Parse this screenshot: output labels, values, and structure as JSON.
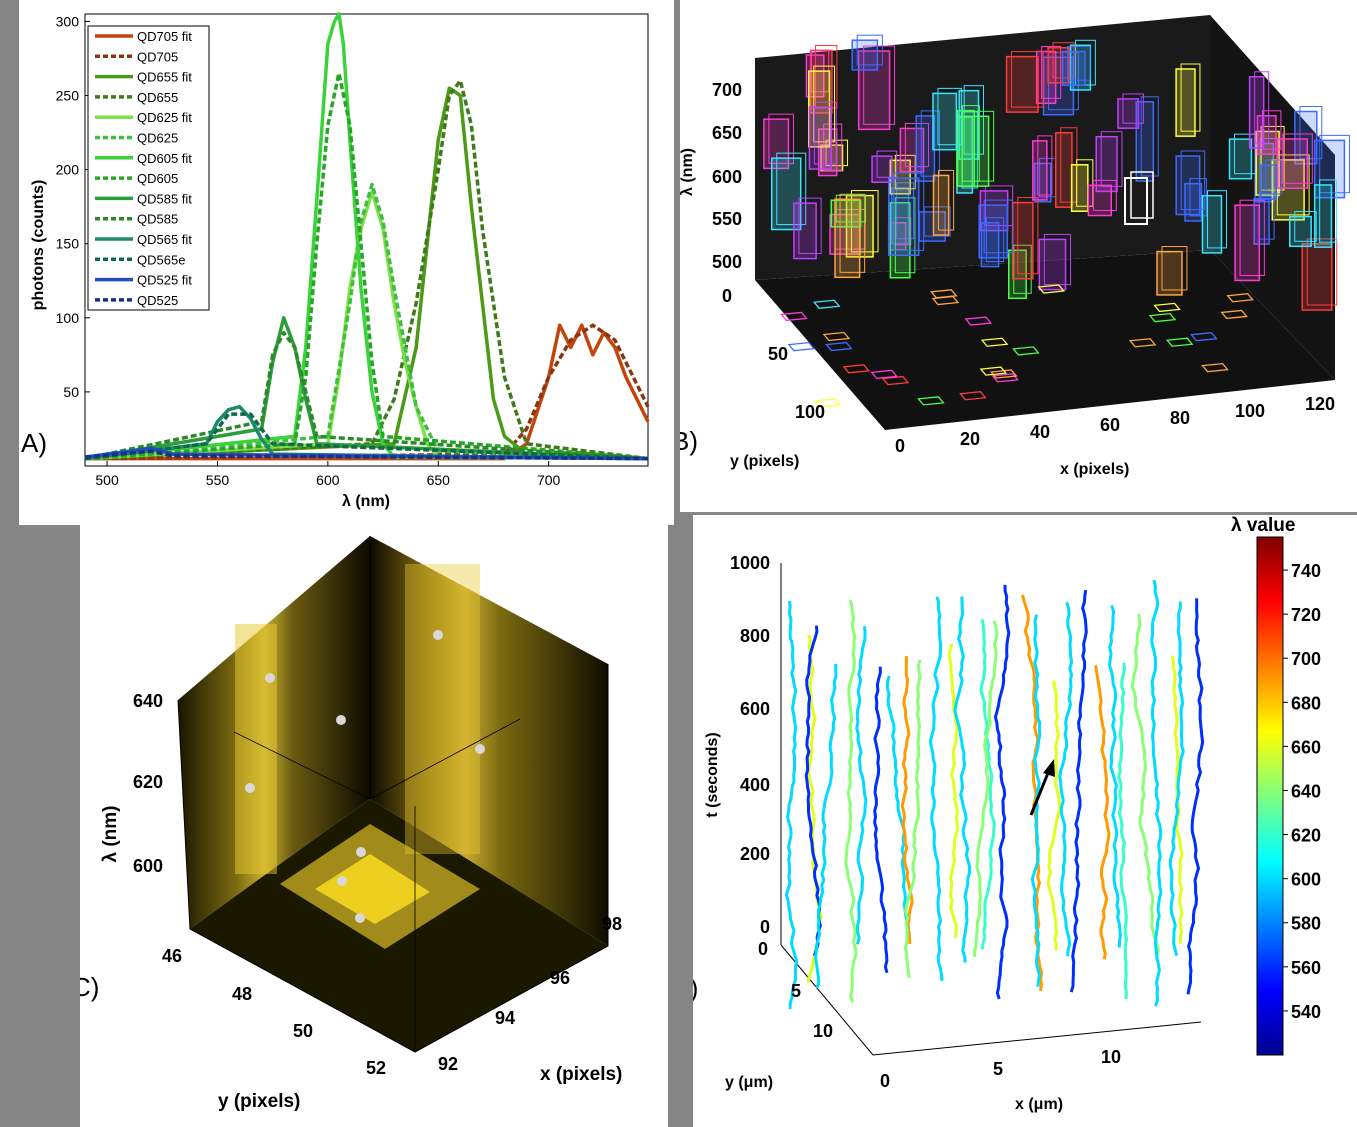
{
  "panels": {
    "a": {
      "label": "A)"
    },
    "b": {
      "label": "B)"
    },
    "c": {
      "label": "C)"
    },
    "d": {
      "label": "D)"
    }
  },
  "chart_data": [
    {
      "type": "line",
      "panel": "A)",
      "xlabel": "λ (nm)",
      "ylabel": "photons (counts)",
      "xlim": [
        490,
        745
      ],
      "ylim": [
        0,
        305
      ],
      "xticks": [
        500,
        550,
        600,
        650,
        700
      ],
      "yticks": [
        50,
        100,
        150,
        200,
        250,
        300
      ],
      "legend_position": "top-left",
      "legend": [
        "QD705 fit",
        "QD705",
        "QD655 fit",
        "QD655",
        "QD625 fit",
        "QD625",
        "QD605 fit",
        "QD605",
        "QD585 fit",
        "QD585",
        "QD565 fit",
        "QD565e",
        "QD525 fit",
        "QD525"
      ],
      "series": [
        {
          "name": "QD705 fit",
          "color": "#c0460e",
          "style": "solid",
          "x": [
            490,
            680,
            690,
            700,
            705,
            710,
            715,
            720,
            725,
            730,
            735,
            740,
            745
          ],
          "y": [
            5,
            5,
            15,
            60,
            95,
            80,
            95,
            75,
            90,
            80,
            60,
            45,
            30
          ]
        },
        {
          "name": "QD705",
          "color": "#8b3510",
          "style": "dashed",
          "x": [
            490,
            680,
            690,
            700,
            710,
            720,
            730,
            740,
            745
          ],
          "y": [
            5,
            8,
            25,
            60,
            85,
            95,
            85,
            55,
            40
          ]
        },
        {
          "name": "QD655 fit",
          "color": "#4c9a16",
          "style": "solid",
          "x": [
            490,
            630,
            640,
            645,
            650,
            655,
            660,
            665,
            670,
            675,
            680,
            690,
            745
          ],
          "y": [
            5,
            15,
            80,
            150,
            220,
            255,
            250,
            175,
            110,
            45,
            20,
            8,
            5
          ]
        },
        {
          "name": "QD655",
          "color": "#3f7a1a",
          "style": "dashed",
          "x": [
            490,
            620,
            630,
            640,
            650,
            655,
            660,
            665,
            670,
            680,
            690,
            745
          ],
          "y": [
            5,
            15,
            45,
            110,
            200,
            250,
            260,
            230,
            160,
            60,
            15,
            5
          ]
        },
        {
          "name": "QD625 fit",
          "color": "#7ee04a",
          "style": "solid",
          "x": [
            490,
            600,
            605,
            610,
            615,
            620,
            625,
            630,
            635,
            640,
            645,
            650,
            745
          ],
          "y": [
            5,
            15,
            60,
            120,
            160,
            185,
            160,
            110,
            70,
            40,
            15,
            6,
            5
          ]
        },
        {
          "name": "QD625",
          "color": "#3fbf3f",
          "style": "dashed",
          "x": [
            490,
            600,
            610,
            615,
            620,
            625,
            630,
            640,
            650,
            745
          ],
          "y": [
            5,
            20,
            110,
            165,
            190,
            165,
            120,
            40,
            10,
            5
          ]
        },
        {
          "name": "QD605 fit",
          "color": "#3cd23c",
          "style": "solid",
          "x": [
            490,
            585,
            590,
            595,
            600,
            603,
            605,
            607,
            610,
            615,
            620,
            625,
            630,
            745
          ],
          "y": [
            5,
            20,
            80,
            180,
            285,
            300,
            305,
            285,
            220,
            120,
            50,
            15,
            6,
            5
          ]
        },
        {
          "name": "QD605",
          "color": "#24a824",
          "style": "dashed",
          "x": [
            490,
            585,
            590,
            595,
            600,
            605,
            610,
            615,
            620,
            625,
            745
          ],
          "y": [
            5,
            15,
            60,
            150,
            230,
            265,
            230,
            150,
            70,
            20,
            5
          ]
        },
        {
          "name": "QD585 fit",
          "color": "#2a9e3a",
          "style": "solid",
          "x": [
            490,
            570,
            575,
            580,
            585,
            590,
            595,
            745
          ],
          "y": [
            5,
            25,
            70,
            100,
            80,
            45,
            15,
            5
          ]
        },
        {
          "name": "QD585",
          "color": "#2a8a2a",
          "style": "dashed",
          "x": [
            490,
            570,
            575,
            580,
            585,
            590,
            595,
            745
          ],
          "y": [
            5,
            30,
            75,
            90,
            80,
            50,
            20,
            5
          ]
        },
        {
          "name": "QD565 fit",
          "color": "#1d8a6a",
          "style": "solid",
          "x": [
            490,
            545,
            550,
            555,
            560,
            565,
            570,
            575,
            745
          ],
          "y": [
            5,
            15,
            30,
            38,
            40,
            32,
            18,
            8,
            5
          ]
        },
        {
          "name": "QD565e",
          "color": "#0f6a4a",
          "style": "dashed",
          "x": [
            490,
            545,
            555,
            565,
            575,
            745
          ],
          "y": [
            5,
            15,
            35,
            35,
            15,
            5
          ]
        },
        {
          "name": "QD525 fit",
          "color": "#1f4fb8",
          "style": "solid",
          "x": [
            490,
            520,
            530,
            745
          ],
          "y": [
            6,
            12,
            8,
            5
          ]
        },
        {
          "name": "QD525",
          "color": "#1a2f8a",
          "style": "dashed",
          "x": [
            490,
            520,
            530,
            745
          ],
          "y": [
            6,
            10,
            7,
            5
          ]
        }
      ]
    },
    {
      "type": "scatter",
      "panel": "B)",
      "xlabel": "x (pixels)",
      "ylabel": "y (pixels)",
      "zlabel": "λ (nm)",
      "xticks": [
        0,
        20,
        40,
        60,
        80,
        100,
        120
      ],
      "yticks": [
        0,
        50,
        100
      ],
      "zticks": [
        500,
        550,
        600,
        650,
        700
      ]
    },
    {
      "type": "heatmap",
      "panel": "C)",
      "xlabel": "x (pixels)",
      "ylabel": "y (pixels)",
      "zlabel": "λ (nm)",
      "xticks": [
        92,
        94,
        96,
        98
      ],
      "yticks": [
        46,
        48,
        50,
        52
      ],
      "zticks": [
        600,
        620,
        640
      ]
    },
    {
      "type": "line",
      "panel": "D)",
      "xlabel": "x (μm)",
      "ylabel": "y (μm)",
      "zlabel": "t (seconds)",
      "xticks": [
        0,
        5,
        10
      ],
      "yticks": [
        0,
        5,
        10
      ],
      "zticks": [
        0,
        200,
        400,
        600,
        800,
        1000
      ],
      "colorbar": {
        "label": "λ value",
        "ticks": [
          540,
          560,
          580,
          600,
          620,
          640,
          660,
          680,
          700,
          720,
          740
        ],
        "range": [
          520,
          755
        ]
      }
    }
  ]
}
